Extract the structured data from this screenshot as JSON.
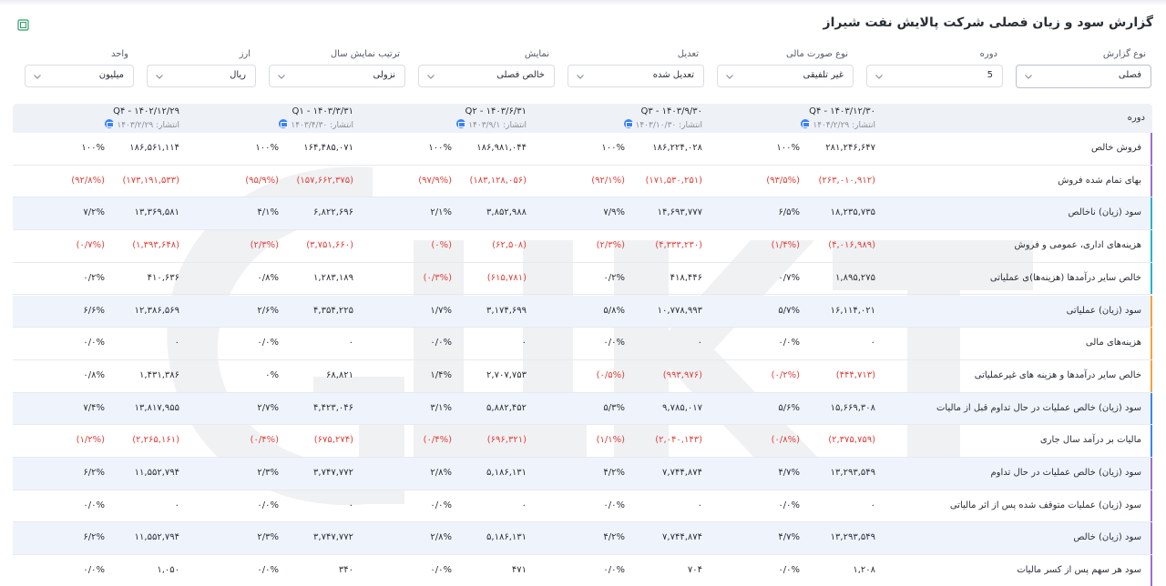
{
  "page": {
    "title": "گزارش سود و زیان فصلی شرکت پالایش نفت شیراز",
    "export_icon": "excel-export-icon"
  },
  "filters": [
    {
      "label": "نوع گزارش",
      "value": "فصلی",
      "name": "report-type-select"
    },
    {
      "label": "دوره",
      "value": "5",
      "name": "period-select"
    },
    {
      "label": "نوع صورت مالی",
      "value": "غیر تلفیقی",
      "name": "statement-type-select"
    },
    {
      "label": "تعدیل",
      "value": "تعدیل شده",
      "name": "adjustment-select"
    },
    {
      "label": "نمایش",
      "value": "خالص فصلی",
      "name": "display-select"
    },
    {
      "label": "ترتیب نمایش سال",
      "value": "نزولی",
      "name": "year-order-select"
    },
    {
      "label": "ارز",
      "value": "ریال",
      "name": "currency-select"
    },
    {
      "label": "واحد",
      "value": "میلیون",
      "name": "unit-select"
    }
  ],
  "table": {
    "row_header": "دوره",
    "columns": [
      {
        "title": "Q۴ - ۱۴۰۳/۱۲/۳۰",
        "published": "انتشار: ۱۴۰۴/۲/۲۹"
      },
      {
        "title": "Q۳ - ۱۴۰۳/۹/۳۰",
        "published": "انتشار: ۱۴۰۳/۱۰/۳۰"
      },
      {
        "title": "Q۲ - ۱۴۰۳/۶/۳۱",
        "published": "انتشار: ۱۴۰۳/۹/۱"
      },
      {
        "title": "Q۱ - ۱۴۰۳/۳/۳۱",
        "published": "انتشار: ۱۴۰۳/۴/۳۰"
      },
      {
        "title": "Q۴ - ۱۴۰۲/۱۲/۲۹",
        "published": "انتشار: ۱۴۰۳/۲/۲۹"
      }
    ],
    "rows": [
      {
        "label": "فروش خالص",
        "accent": "#9b6fd0",
        "cells": [
          {
            "v": "۲۸۱,۲۴۶,۶۴۷",
            "p": "۱۰۰%",
            "neg": false
          },
          {
            "v": "۱۸۶,۲۲۴,۰۲۸",
            "p": "۱۰۰%",
            "neg": false
          },
          {
            "v": "۱۸۶,۹۸۱,۰۴۴",
            "p": "۱۰۰%",
            "neg": false
          },
          {
            "v": "۱۶۴,۴۸۵,۰۷۱",
            "p": "۱۰۰%",
            "neg": false
          },
          {
            "v": "۱۸۶,۵۶۱,۱۱۴",
            "p": "۱۰۰%",
            "neg": false
          }
        ]
      },
      {
        "label": "بهای تمام شده فروش",
        "accent": "#9b6fd0",
        "cells": [
          {
            "v": "(۲۶۳,۰۱۰,۹۱۲)",
            "p": "(۹۳/۵%)",
            "neg": true
          },
          {
            "v": "(۱۷۱,۵۳۰,۲۵۱)",
            "p": "(۹۲/۱%)",
            "neg": true
          },
          {
            "v": "(۱۸۳,۱۲۸,۰۵۶)",
            "p": "(۹۷/۹%)",
            "neg": true
          },
          {
            "v": "(۱۵۷,۶۶۲,۳۷۵)",
            "p": "(۹۵/۹%)",
            "neg": true
          },
          {
            "v": "(۱۷۳,۱۹۱,۵۳۳)",
            "p": "(۹۲/۸%)",
            "neg": true
          }
        ]
      },
      {
        "label": "سود (زیان) ناخالص",
        "accent": "#26b3c7",
        "cells": [
          {
            "v": "۱۸,۲۳۵,۷۳۵",
            "p": "۶/۵%",
            "neg": false
          },
          {
            "v": "۱۴,۶۹۳,۷۷۷",
            "p": "۷/۹%",
            "neg": false
          },
          {
            "v": "۳,۸۵۲,۹۸۸",
            "p": "۲/۱%",
            "neg": false
          },
          {
            "v": "۶,۸۲۲,۶۹۶",
            "p": "۴/۱%",
            "neg": false
          },
          {
            "v": "۱۳,۳۶۹,۵۸۱",
            "p": "۷/۲%",
            "neg": false
          }
        ]
      },
      {
        "label": "هزینه‌های اداری، عمومی و فروش",
        "accent": "#26b3c7",
        "cells": [
          {
            "v": "(۴,۰۱۶,۹۸۹)",
            "p": "(۱/۴%)",
            "neg": true
          },
          {
            "v": "(۴,۳۳۳,۲۳۰)",
            "p": "(۲/۳%)",
            "neg": true
          },
          {
            "v": "(۶۲,۵۰۸)",
            "p": "(۰%)",
            "neg": true
          },
          {
            "v": "(۳,۷۵۱,۶۶۰)",
            "p": "(۲/۳%)",
            "neg": true
          },
          {
            "v": "(۱,۳۹۳,۶۴۸)",
            "p": "(۰/۷%)",
            "neg": true
          }
        ]
      },
      {
        "label": "خالص سایر درآمدها (هزینه‌ها)ی عملیاتی",
        "accent": "#26b3c7",
        "cells": [
          {
            "v": "۱,۸۹۵,۲۷۵",
            "p": "۰/۷%",
            "neg": false
          },
          {
            "v": "۴۱۸,۴۴۶",
            "p": "۰/۲%",
            "neg": false
          },
          {
            "v": "(۶۱۵,۷۸۱)",
            "p": "(۰/۳%)",
            "neg": true
          },
          {
            "v": "۱,۲۸۳,۱۸۹",
            "p": "۰/۸%",
            "neg": false
          },
          {
            "v": "۴۱۰,۶۳۶",
            "p": "۰/۲%",
            "neg": false
          }
        ]
      },
      {
        "label": "سود (زیان) عملیاتی",
        "accent": "#f4a23a",
        "cells": [
          {
            "v": "۱۶,۱۱۴,۰۲۱",
            "p": "۵/۷%",
            "neg": false
          },
          {
            "v": "۱۰,۷۷۸,۹۹۳",
            "p": "۵/۸%",
            "neg": false
          },
          {
            "v": "۳,۱۷۴,۶۹۹",
            "p": "۱/۷%",
            "neg": false
          },
          {
            "v": "۴,۳۵۴,۲۲۵",
            "p": "۲/۶%",
            "neg": false
          },
          {
            "v": "۱۲,۳۸۶,۵۶۹",
            "p": "۶/۶%",
            "neg": false
          }
        ]
      },
      {
        "label": "هزینه‌های مالی",
        "accent": "#f4a23a",
        "cells": [
          {
            "v": "۰",
            "p": "۰/۰%",
            "neg": false
          },
          {
            "v": "۰",
            "p": "۰/۰%",
            "neg": false
          },
          {
            "v": "۰",
            "p": "۰/۰%",
            "neg": false
          },
          {
            "v": "۰",
            "p": "۰/۰%",
            "neg": false
          },
          {
            "v": "۰",
            "p": "۰/۰%",
            "neg": false
          }
        ]
      },
      {
        "label": "خالص سایر درآمدها و هزینه های غیرعملیاتی",
        "accent": "#f4a23a",
        "cells": [
          {
            "v": "(۴۴۴,۷۱۳)",
            "p": "(۰/۲%)",
            "neg": true
          },
          {
            "v": "(۹۹۳,۹۷۶)",
            "p": "(۰/۵%)",
            "neg": true
          },
          {
            "v": "۲,۷۰۷,۷۵۳",
            "p": "۱/۴%",
            "neg": false
          },
          {
            "v": "۶۸,۸۲۱",
            "p": "۰%",
            "neg": false
          },
          {
            "v": "۱,۴۳۱,۳۸۶",
            "p": "۰/۸%",
            "neg": false
          }
        ]
      },
      {
        "label": "سود (زیان) خالص عملیات در حال تداوم قبل از مالیات",
        "accent": "#3b82f6",
        "cells": [
          {
            "v": "۱۵,۶۶۹,۳۰۸",
            "p": "۵/۶%",
            "neg": false
          },
          {
            "v": "۹,۷۸۵,۰۱۷",
            "p": "۵/۳%",
            "neg": false
          },
          {
            "v": "۵,۸۸۲,۴۵۲",
            "p": "۳/۱%",
            "neg": false
          },
          {
            "v": "۴,۴۲۳,۰۴۶",
            "p": "۲/۷%",
            "neg": false
          },
          {
            "v": "۱۳,۸۱۷,۹۵۵",
            "p": "۷/۴%",
            "neg": false
          }
        ]
      },
      {
        "label": "مالیات بر درآمد سال جاری",
        "accent": "#3b82f6",
        "cells": [
          {
            "v": "(۲,۳۷۵,۷۵۹)",
            "p": "(۰/۸%)",
            "neg": true
          },
          {
            "v": "(۲,۰۴۰,۱۴۳)",
            "p": "(۱/۱%)",
            "neg": true
          },
          {
            "v": "(۶۹۶,۳۲۱)",
            "p": "(۰/۴%)",
            "neg": true
          },
          {
            "v": "(۶۷۵,۲۷۴)",
            "p": "(۰/۴%)",
            "neg": true
          },
          {
            "v": "(۲,۲۶۵,۱۶۱)",
            "p": "(۱/۲%)",
            "neg": true
          }
        ]
      },
      {
        "label": "سود (زیان) خالص عملیات در حال تداوم",
        "accent": "#9b6fd0",
        "cells": [
          {
            "v": "۱۳,۲۹۳,۵۴۹",
            "p": "۴/۷%",
            "neg": false
          },
          {
            "v": "۷,۷۴۴,۸۷۴",
            "p": "۴/۲%",
            "neg": false
          },
          {
            "v": "۵,۱۸۶,۱۳۱",
            "p": "۲/۸%",
            "neg": false
          },
          {
            "v": "۳,۷۴۷,۷۷۲",
            "p": "۲/۳%",
            "neg": false
          },
          {
            "v": "۱۱,۵۵۲,۷۹۴",
            "p": "۶/۲%",
            "neg": false
          }
        ]
      },
      {
        "label": "سود (زیان) عملیات متوقف شده پس از اثر مالیاتی",
        "accent": "#9b6fd0",
        "cells": [
          {
            "v": "۰",
            "p": "۰/۰%",
            "neg": false
          },
          {
            "v": "۰",
            "p": "۰/۰%",
            "neg": false
          },
          {
            "v": "۰",
            "p": "۰/۰%",
            "neg": false
          },
          {
            "v": "۰",
            "p": "۰/۰%",
            "neg": false
          },
          {
            "v": "۰",
            "p": "۰/۰%",
            "neg": false
          }
        ]
      },
      {
        "label": "سود (زیان) خالص",
        "accent": "#9b6fd0",
        "cells": [
          {
            "v": "۱۳,۲۹۳,۵۴۹",
            "p": "۴/۷%",
            "neg": false
          },
          {
            "v": "۷,۷۴۴,۸۷۴",
            "p": "۴/۲%",
            "neg": false
          },
          {
            "v": "۵,۱۸۶,۱۳۱",
            "p": "۲/۸%",
            "neg": false
          },
          {
            "v": "۳,۷۴۷,۷۷۲",
            "p": "۲/۳%",
            "neg": false
          },
          {
            "v": "۱۱,۵۵۲,۷۹۴",
            "p": "۶/۲%",
            "neg": false
          }
        ]
      },
      {
        "label": "سود هر سهم پس از کسر مالیات",
        "accent": "#9b6fd0",
        "cells": [
          {
            "v": "۱,۲۰۸",
            "p": "۰/۰%",
            "neg": false
          },
          {
            "v": "۷۰۴",
            "p": "۰/۰%",
            "neg": false
          },
          {
            "v": "۴۷۱",
            "p": "۰/۰%",
            "neg": false
          },
          {
            "v": "۳۴۰",
            "p": "۰/۰%",
            "neg": false
          },
          {
            "v": "۱,۰۵۰",
            "p": "۰/۰%",
            "neg": false
          }
        ]
      }
    ]
  },
  "colors": {
    "negative": "#e0403a",
    "alt_row": "#eff4fc",
    "header_bg": "#eef1f6"
  }
}
